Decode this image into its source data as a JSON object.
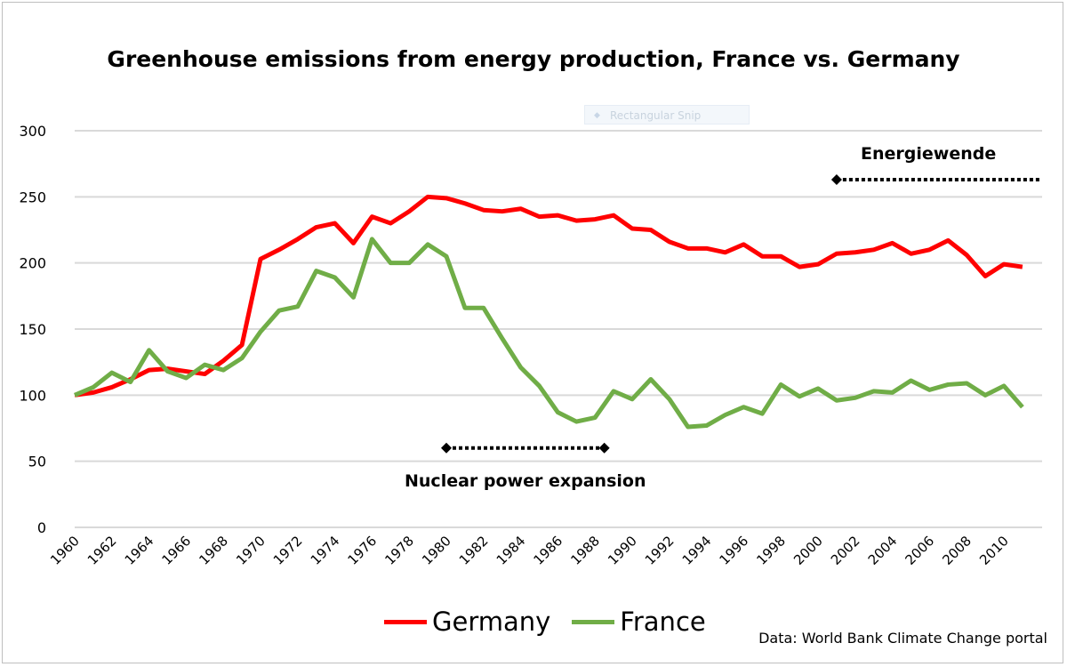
{
  "chart_data": {
    "type": "line",
    "title": "Greenhouse emissions from energy production, France vs. Germany",
    "xlabel": "",
    "ylabel": "",
    "ylim": [
      0,
      300
    ],
    "yticks": [
      "0",
      "50",
      "100",
      "150",
      "200",
      "250",
      "300"
    ],
    "x": [
      1960,
      1961,
      1962,
      1963,
      1964,
      1965,
      1966,
      1967,
      1968,
      1969,
      1970,
      1971,
      1972,
      1973,
      1974,
      1975,
      1976,
      1977,
      1978,
      1979,
      1980,
      1981,
      1982,
      1983,
      1984,
      1985,
      1986,
      1987,
      1988,
      1989,
      1990,
      1991,
      1992,
      1993,
      1994,
      1995,
      1996,
      1997,
      1998,
      1999,
      2000,
      2001,
      2002,
      2003,
      2004,
      2005,
      2006,
      2007,
      2008,
      2009,
      2010,
      2011
    ],
    "xticks": [
      "1960",
      "1962",
      "1964",
      "1966",
      "1968",
      "1970",
      "1972",
      "1974",
      "1976",
      "1978",
      "1980",
      "1982",
      "1984",
      "1986",
      "1988",
      "1990",
      "1992",
      "1994",
      "1996",
      "1998",
      "2000",
      "2002",
      "2004",
      "2006",
      "2008",
      "2010"
    ],
    "grid": true,
    "legend_position": "bottom",
    "series": [
      {
        "name": "Germany",
        "color": "#ff0000",
        "values": [
          100,
          102,
          106,
          112,
          119,
          120,
          118,
          116,
          126,
          138,
          203,
          210,
          218,
          227,
          230,
          215,
          235,
          230,
          239,
          250,
          249,
          245,
          240,
          239,
          241,
          235,
          236,
          232,
          233,
          236,
          226,
          225,
          216,
          211,
          211,
          208,
          214,
          205,
          205,
          197,
          199,
          207,
          208,
          210,
          215,
          207,
          210,
          217,
          206,
          190,
          199,
          197
        ]
      },
      {
        "name": "France",
        "color": "#70ad47",
        "values": [
          100,
          106,
          117,
          110,
          134,
          118,
          113,
          123,
          119,
          128,
          148,
          164,
          167,
          194,
          189,
          174,
          218,
          200,
          200,
          214,
          205,
          166,
          166,
          143,
          121,
          107,
          87,
          80,
          83,
          103,
          97,
          112,
          97,
          76,
          77,
          85,
          91,
          86,
          108,
          99,
          105,
          96,
          98,
          103,
          102,
          111,
          104,
          108,
          109,
          100,
          107,
          91
        ]
      }
    ],
    "annotations": [
      {
        "text": "Energiewende",
        "from_year": 2001,
        "to_year": 2012,
        "value": 263
      },
      {
        "text": "Nuclear power expansion",
        "from_year": 1980,
        "to_year": 1988.5,
        "value": 60
      }
    ]
  },
  "source": "Data: World Bank Climate Change portal",
  "overlay": "Rectangular Snip"
}
